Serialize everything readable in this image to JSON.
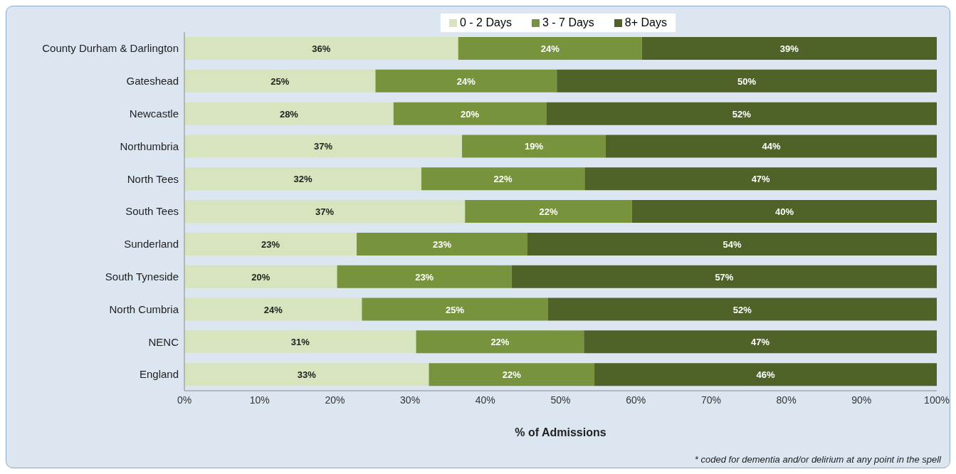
{
  "chart_data": {
    "type": "bar",
    "orientation": "horizontal",
    "stacked": true,
    "xlabel": "% of Admissions",
    "categories": [
      "County Durham & Darlington",
      "Gateshead",
      "Newcastle",
      "Northumbria",
      "North Tees",
      "South Tees",
      "Sunderland",
      "South Tyneside",
      "North Cumbria",
      "NENC",
      "England"
    ],
    "series": [
      {
        "name": "0 - 2 Days",
        "color": "#d7e4bd",
        "values": [
          36.4,
          25.4,
          27.8,
          36.9,
          31.5,
          37.3,
          22.9,
          20.3,
          23.6,
          30.8,
          32.5
        ],
        "value_labels": [
          "36%",
          "25%",
          "28%",
          "37%",
          "32%",
          "37%",
          "23%",
          "20%",
          "24%",
          "31%",
          "33%"
        ]
      },
      {
        "name": "3 - 7 Days",
        "color": "#77933c",
        "values": [
          24.4,
          24.1,
          20.3,
          19.1,
          21.7,
          22.2,
          22.7,
          23.2,
          24.7,
          22.3,
          22.0
        ],
        "value_labels": [
          "24%",
          "24%",
          "20%",
          "19%",
          "22%",
          "22%",
          "23%",
          "23%",
          "25%",
          "22%",
          "22%"
        ]
      },
      {
        "name": "8+ Days",
        "color": "#4f6228",
        "values": [
          39.2,
          50.5,
          51.9,
          44.0,
          46.8,
          40.5,
          54.4,
          56.5,
          51.7,
          46.9,
          45.5
        ],
        "value_labels": [
          "39%",
          "50%",
          "52%",
          "44%",
          "47%",
          "40%",
          "54%",
          "57%",
          "52%",
          "47%",
          "46%"
        ]
      }
    ],
    "xlim": [
      0,
      100
    ],
    "xticks": [
      {
        "value": 0,
        "label": "0%"
      },
      {
        "value": 10,
        "label": "10%"
      },
      {
        "value": 20,
        "label": "20%"
      },
      {
        "value": 30,
        "label": "30%"
      },
      {
        "value": 40,
        "label": "40%"
      },
      {
        "value": 50,
        "label": "50%"
      },
      {
        "value": 60,
        "label": "60%"
      },
      {
        "value": 70,
        "label": "70%"
      },
      {
        "value": 80,
        "label": "80%"
      },
      {
        "value": 90,
        "label": "90%"
      },
      {
        "value": 100,
        "label": "100%"
      }
    ],
    "legend": "top",
    "annotations": [
      "* coded for dementia and/or delirium at any point in the spell"
    ]
  }
}
